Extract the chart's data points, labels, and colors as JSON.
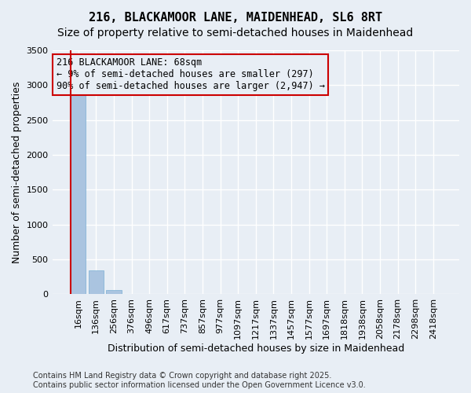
{
  "title1": "216, BLACKAMOOR LANE, MAIDENHEAD, SL6 8RT",
  "title2": "Size of property relative to semi-detached houses in Maidenhead",
  "xlabel": "Distribution of semi-detached houses by size in Maidenhead",
  "ylabel": "Number of semi-detached properties",
  "footer": "Contains HM Land Registry data © Crown copyright and database right 2025.\nContains public sector information licensed under the Open Government Licence v3.0.",
  "bin_labels": [
    "16sqm",
    "136sqm",
    "256sqm",
    "376sqm",
    "496sqm",
    "617sqm",
    "737sqm",
    "857sqm",
    "977sqm",
    "1097sqm",
    "1217sqm",
    "1337sqm",
    "1457sqm",
    "1577sqm",
    "1697sqm",
    "1818sqm",
    "1938sqm",
    "2058sqm",
    "2178sqm",
    "2298sqm",
    "2418sqm"
  ],
  "bar_values": [
    2900,
    340,
    60,
    5,
    2,
    1,
    0,
    0,
    0,
    0,
    0,
    0,
    0,
    0,
    0,
    0,
    0,
    0,
    0,
    0,
    0
  ],
  "bar_color": "#aac4e0",
  "bar_edge_color": "#7aafd4",
  "ylim": [
    0,
    3500
  ],
  "yticks": [
    0,
    500,
    1000,
    1500,
    2000,
    2500,
    3000,
    3500
  ],
  "annotation_text": "216 BLACKAMOOR LANE: 68sqm\n← 9% of semi-detached houses are smaller (297)\n90% of semi-detached houses are larger (2,947) →",
  "annotation_box_color": "#cc0000",
  "vline_color": "#cc0000",
  "background_color": "#e8eef5",
  "grid_color": "#ffffff",
  "title1_fontsize": 11,
  "title2_fontsize": 10,
  "annotation_fontsize": 8.5,
  "ylabel_fontsize": 9,
  "xlabel_fontsize": 9,
  "tick_fontsize": 8,
  "footer_fontsize": 7
}
